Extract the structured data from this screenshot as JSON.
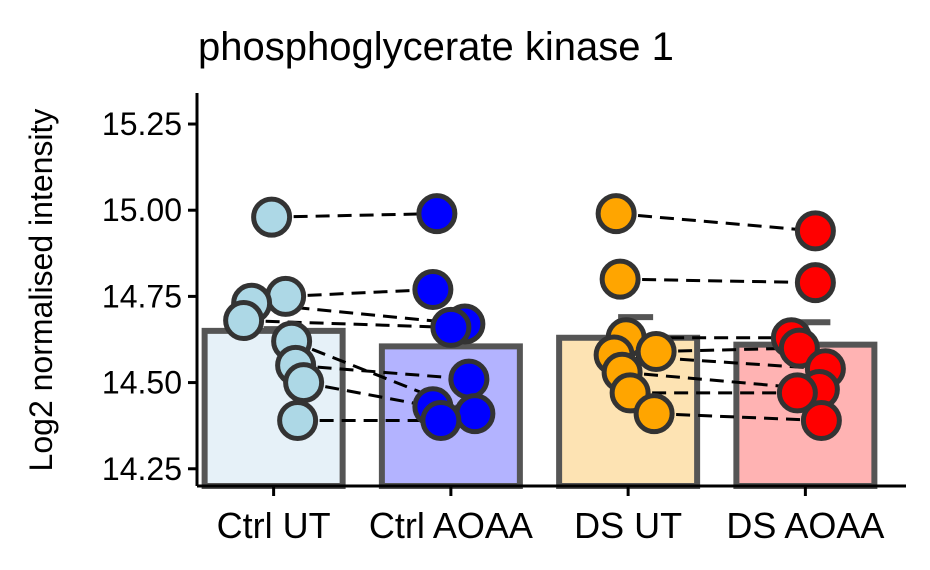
{
  "chart_data": {
    "type": "bar",
    "title": "phosphoglycerate kinase 1",
    "xlabel": "",
    "ylabel": "Log2 normalised intensity",
    "ylim": [
      14.2,
      15.34
    ],
    "yticks": [
      "14.25",
      "14.50",
      "14.75",
      "15.00",
      "15.25"
    ],
    "grid": false,
    "legend": "none",
    "categories": [
      "Ctrl UT",
      "Ctrl AOAA",
      "DS UT",
      "DS AOAA"
    ],
    "values": [
      14.65,
      14.605,
      14.63,
      14.61
    ],
    "error_upper": [
      14.655,
      14.675,
      14.69,
      14.675
    ],
    "bar_fill": [
      "#e6f1f8",
      "#b3b3ff",
      "#fde3b3",
      "#ffb3b3"
    ],
    "point_fill": [
      "#add8e6",
      "#0000ff",
      "#ffa500",
      "#ff0000"
    ],
    "bar_outline": "#555555",
    "point_outline": "#333333",
    "points": [
      [
        14.98,
        14.75,
        14.73,
        14.68,
        14.62,
        14.55,
        14.5,
        14.39
      ],
      [
        14.99,
        14.77,
        14.67,
        14.66,
        14.51,
        14.43,
        14.41,
        14.39
      ],
      [
        14.99,
        14.8,
        14.63,
        14.59,
        14.58,
        14.53,
        14.47,
        14.41
      ],
      [
        14.94,
        14.79,
        14.63,
        14.6,
        14.54,
        14.48,
        14.47,
        14.39
      ]
    ],
    "pairs": [
      [
        14.98,
        14.99,
        14.99,
        14.94
      ],
      [
        14.75,
        14.77,
        14.8,
        14.79
      ],
      [
        14.73,
        14.67,
        14.63,
        14.63
      ],
      [
        14.68,
        14.66,
        14.59,
        14.6
      ],
      [
        14.55,
        14.51,
        14.58,
        14.54
      ],
      [
        14.5,
        14.43,
        14.53,
        14.48
      ],
      [
        14.62,
        14.41,
        14.47,
        14.47
      ],
      [
        14.39,
        14.39,
        14.41,
        14.39
      ]
    ]
  }
}
